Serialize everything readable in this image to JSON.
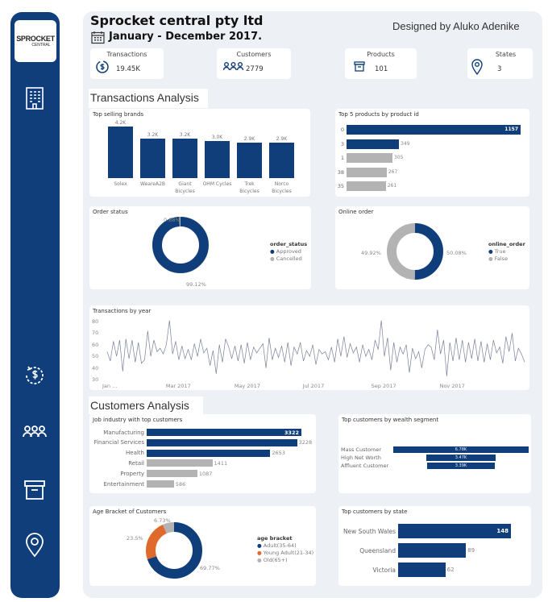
{
  "header": {
    "title": "Sprocket central pty ltd",
    "period": "January - December 2017.",
    "designer": "Designed by Aluko Adenike"
  },
  "sidebar": {
    "logo_text": "SPROCKET",
    "logo_sub": "CENTRAL",
    "icons": [
      "building-icon",
      "transactions-icon",
      "customers-icon",
      "products-icon",
      "location-icon"
    ]
  },
  "kpis": [
    {
      "label": "Transactions",
      "value": "19.45K",
      "icon": "dollar-cycle-icon"
    },
    {
      "label": "Customers",
      "value": "2779",
      "icon": "people-icon"
    },
    {
      "label": "Products",
      "value": "101",
      "icon": "box-icon"
    },
    {
      "label": "States",
      "value": "3",
      "icon": "location-pin-icon"
    }
  ],
  "colors": {
    "primary": "#0f3e7a",
    "secondary": "#b3b3b3",
    "accent": "#e0692c"
  },
  "sections": {
    "transactions": "Transactions Analysis",
    "customers": "Customers Analysis"
  },
  "chart_data": [
    {
      "id": "brands",
      "type": "bar",
      "title": "Top selling brands",
      "categories": [
        "Solex",
        "WeareA2B",
        "Giant Bicycles",
        "OHM Cycles",
        "Trek Bicycles",
        "Norco Bicycles"
      ],
      "values": [
        4200,
        3200,
        3200,
        3000,
        2900,
        2900
      ],
      "labels": [
        "4.2K",
        "3.2K",
        "3.2K",
        "3.0K",
        "2.9K",
        "2.9K"
      ]
    },
    {
      "id": "products",
      "type": "bar",
      "orientation": "horizontal",
      "title": "Top 5 products by product id",
      "categories": [
        "0",
        "3",
        "1",
        "38",
        "35"
      ],
      "values": [
        1157,
        349,
        305,
        267,
        261
      ],
      "highlight": [
        true,
        true,
        false,
        false,
        false
      ]
    },
    {
      "id": "order_status",
      "type": "pie",
      "title": "Order status",
      "legend_title": "order_status",
      "categories": [
        "Approved",
        "Cancelled"
      ],
      "values": [
        99.12,
        0.88
      ],
      "labels": [
        "99.12%",
        "0.88%"
      ]
    },
    {
      "id": "online_order",
      "type": "pie",
      "title": "Online order",
      "legend_title": "online_order",
      "categories": [
        "True",
        "False"
      ],
      "values": [
        50.08,
        49.92
      ],
      "labels": [
        "50.08%",
        "49.92%"
      ]
    },
    {
      "id": "by_year",
      "type": "line",
      "title": "Transactions by year",
      "ylim": [
        30,
        80
      ],
      "yticks": [
        "30",
        "40",
        "50",
        "60",
        "70",
        "80"
      ],
      "xticks": [
        "Jan ...",
        "Mar 2017",
        "May 2017",
        "Jul 2017",
        "Sep 2017",
        "Nov 2017"
      ],
      "values": [
        54,
        46,
        63,
        50,
        64,
        37,
        65,
        48,
        64,
        45,
        62,
        44,
        47,
        72,
        50,
        64,
        54,
        57,
        52,
        60,
        81,
        52,
        63,
        47,
        59,
        48,
        56,
        47,
        61,
        50,
        65,
        53,
        57,
        42,
        55,
        35,
        60,
        45,
        65,
        58,
        48,
        59,
        46,
        60,
        44,
        62,
        47,
        58,
        53,
        57,
        61,
        40,
        66,
        47,
        57,
        49,
        59,
        45,
        62,
        42,
        58,
        52,
        62,
        46,
        55,
        50,
        60,
        43,
        56,
        52,
        54,
        47,
        58,
        45,
        65,
        50,
        67,
        49,
        61,
        53,
        58,
        45,
        60,
        50,
        56,
        47,
        64,
        56,
        81,
        50,
        66,
        38,
        62,
        45,
        58,
        52,
        60,
        36,
        57,
        48,
        54,
        40,
        56,
        60,
        58,
        47,
        73,
        52,
        64,
        33,
        62,
        46,
        66,
        47,
        64,
        45,
        62,
        48,
        65,
        46,
        63,
        45,
        61,
        47,
        64,
        53,
        58,
        44,
        67,
        54,
        70,
        46,
        57,
        52,
        45
      ]
    },
    {
      "id": "job_industry",
      "type": "bar",
      "orientation": "horizontal",
      "title": "Job industry with top customers",
      "categories": [
        "Manufacturing",
        "Financial Services",
        "Health",
        "Retail",
        "Property",
        "Entertainment"
      ],
      "values": [
        3322,
        3228,
        2653,
        1411,
        1087,
        586
      ],
      "highlight": [
        true,
        true,
        true,
        false,
        false,
        false
      ]
    },
    {
      "id": "wealth",
      "type": "bar",
      "orientation": "horizontal",
      "title": "Top customers by wealth segment",
      "categories": [
        "Mass Customer",
        "High Net Worth",
        "Affluent Customer"
      ],
      "values": [
        6780,
        3470,
        3390
      ],
      "labels": [
        "6.78K",
        "3.47K",
        "3.39K"
      ]
    },
    {
      "id": "age",
      "type": "pie",
      "title": "Age Bracket of Customers",
      "legend_title": "age bracket",
      "categories": [
        "Adult(35-64)",
        "Young Adult(21-34)",
        "Old(65+)"
      ],
      "values": [
        69.77,
        23.5,
        6.73
      ],
      "labels": [
        "69.77%",
        "23.5%",
        "6.73%"
      ]
    },
    {
      "id": "state",
      "type": "bar",
      "orientation": "horizontal",
      "title": "Top customers by state",
      "categories": [
        "New South Wales",
        "Queensland",
        "Victoria"
      ],
      "values": [
        148,
        89,
        62
      ]
    }
  ]
}
